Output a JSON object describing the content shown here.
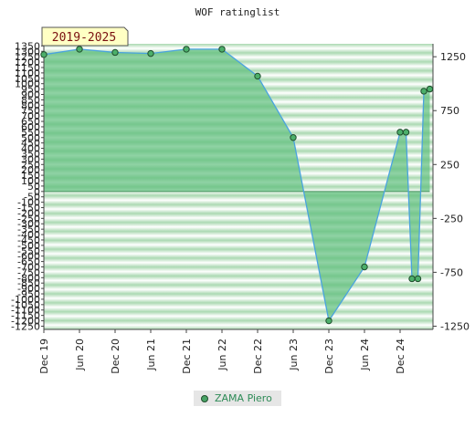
{
  "chart_data": {
    "type": "area",
    "title": "WOF ratinglist",
    "badge": "2019-2025",
    "x_ticks": [
      "Dec 19",
      "Jun 20",
      "Dec 20",
      "Jun 21",
      "Dec 21",
      "Jun 22",
      "Dec 22",
      "Jun 23",
      "Dec 23",
      "Jun 24",
      "Dec 24"
    ],
    "left_ticks": [
      1350,
      1300,
      1250,
      1200,
      1150,
      1100,
      1050,
      1000,
      950,
      900,
      850,
      800,
      750,
      700,
      650,
      600,
      550,
      500,
      450,
      400,
      350,
      300,
      250,
      200,
      150,
      100,
      50,
      0,
      -50,
      -100,
      -150,
      -200,
      -250,
      -300,
      -350,
      -400,
      -450,
      -500,
      -550,
      -600,
      -650,
      -700,
      -750,
      -800,
      -850,
      -900,
      -950,
      -1000,
      -1050,
      -1100,
      -1150,
      -1200,
      -1250
    ],
    "right_ticks": [
      1250,
      750,
      250,
      -250,
      -750,
      -1250
    ],
    "ylim": [
      -1280,
      1370
    ],
    "series": [
      {
        "name": "ZAMA Piero",
        "color": "#4aa3df",
        "fill": "#5fbf7d",
        "points": [
          [
            "Dec 19",
            1270
          ],
          [
            "Jun 20",
            1320
          ],
          [
            "Dec 20",
            1290
          ],
          [
            "Jun 21",
            1280
          ],
          [
            "Dec 21",
            1320
          ],
          [
            "Jun 22",
            1320
          ],
          [
            "Dec 22",
            1070
          ],
          [
            "Jun 23",
            500
          ],
          [
            "Dec 23",
            -1200
          ],
          [
            "Jun 24",
            -700
          ],
          [
            "Dec 24",
            550
          ],
          [
            "Jan 25",
            550
          ],
          [
            "Feb 25",
            -810
          ],
          [
            "Mar 25",
            -810
          ],
          [
            "Apr 25",
            930
          ],
          [
            "May 25",
            950
          ]
        ]
      }
    ],
    "grid": true,
    "legend": "bottom-center"
  }
}
